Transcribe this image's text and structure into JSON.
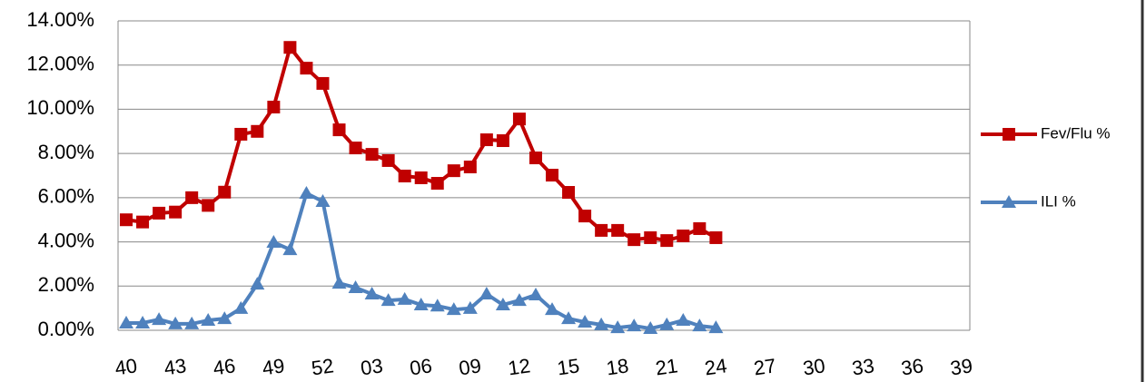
{
  "chart_data": {
    "type": "line",
    "categories": [
      "40",
      null,
      null,
      "43",
      null,
      null,
      "46",
      null,
      null,
      "49",
      null,
      null,
      "52",
      null,
      null,
      "03",
      null,
      null,
      "06",
      null,
      null,
      "09",
      null,
      null,
      "12",
      null,
      null,
      "15",
      null,
      null,
      "18",
      null,
      null,
      "21",
      null,
      null,
      "24",
      null,
      null,
      "27",
      null,
      null,
      "30",
      null,
      null,
      "33",
      null,
      null,
      "36",
      null,
      null,
      "39"
    ],
    "series": [
      {
        "name": "Fev/Flu %",
        "color": "#c00000",
        "marker": "square",
        "values": [
          5.0,
          4.9,
          5.3,
          5.35,
          6.0,
          5.65,
          6.25,
          8.87,
          9.0,
          10.1,
          12.8,
          11.86,
          11.17,
          9.07,
          8.25,
          7.96,
          7.68,
          6.98,
          6.9,
          6.65,
          7.22,
          7.39,
          8.62,
          8.58,
          9.56,
          7.8,
          7.02,
          6.24,
          5.17,
          4.52,
          4.52,
          4.1,
          4.19,
          4.06,
          4.27,
          4.6,
          4.19,
          null,
          null,
          null,
          null,
          null,
          null,
          null,
          null,
          null,
          null,
          null,
          null,
          null,
          null,
          null
        ]
      },
      {
        "name": "ILI %",
        "color": "#4f81bd",
        "marker": "triangle",
        "values": [
          0.33,
          0.33,
          0.49,
          0.29,
          0.29,
          0.45,
          0.53,
          0.99,
          2.09,
          3.98,
          3.65,
          6.2,
          5.83,
          2.13,
          1.93,
          1.64,
          1.35,
          1.4,
          1.15,
          1.1,
          0.94,
          0.99,
          1.64,
          1.15,
          1.35,
          1.6,
          0.94,
          0.53,
          0.37,
          0.25,
          0.12,
          0.2,
          0.08,
          0.25,
          0.45,
          0.2,
          0.12,
          null,
          null,
          null,
          null,
          null,
          null,
          null,
          null,
          null,
          null,
          null,
          null,
          null,
          null,
          null
        ]
      }
    ],
    "ylim": [
      0,
      14
    ],
    "yticks": [
      {
        "value": 0,
        "label": "0.00%"
      },
      {
        "value": 2,
        "label": "2.00%"
      },
      {
        "value": 4,
        "label": "4.00%"
      },
      {
        "value": 6,
        "label": "6.00%"
      },
      {
        "value": 8,
        "label": "8.00%"
      },
      {
        "value": 10,
        "label": "10.00%"
      },
      {
        "value": 12,
        "label": "12.00%"
      },
      {
        "value": 14,
        "label": "14.00%"
      }
    ],
    "grid": true,
    "legend": "right"
  }
}
